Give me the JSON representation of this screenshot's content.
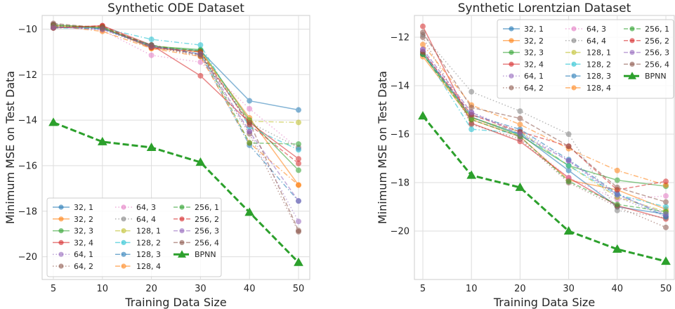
{
  "chart_data": [
    {
      "type": "line",
      "title": "Synthetic ODE Dataset",
      "xlabel": "Training Data Size",
      "ylabel": "Minimum MSE on Test Data",
      "categories": [
        "5",
        "10",
        "20",
        "30",
        "40",
        "50"
      ],
      "ylim": [
        -21.0,
        -9.4
      ],
      "yticks": [
        -20,
        -18,
        -16,
        -14,
        -12,
        -10
      ],
      "grid": true,
      "legend_position": "lower-left",
      "legend_columns": 3,
      "series": [
        {
          "name": "32, 1",
          "color": "#1f77b4",
          "dash": "solid",
          "marker": "circle",
          "values": [
            -9.9,
            -9.95,
            -10.8,
            -10.95,
            -13.15,
            -13.55
          ]
        },
        {
          "name": "32, 2",
          "color": "#ff7f0e",
          "dash": "solid",
          "marker": "circle",
          "values": [
            -9.85,
            -9.9,
            -10.85,
            -11.0,
            -13.9,
            -16.85
          ]
        },
        {
          "name": "32, 3",
          "color": "#2ca02c",
          "dash": "solid",
          "marker": "circle",
          "values": [
            -9.8,
            -9.95,
            -10.75,
            -10.9,
            -14.0,
            -16.2
          ]
        },
        {
          "name": "32, 4",
          "color": "#d62728",
          "dash": "solid",
          "marker": "circle",
          "values": [
            -9.95,
            -9.85,
            -10.7,
            -12.05,
            -14.1,
            -15.7
          ]
        },
        {
          "name": "64, 1",
          "color": "#9467bd",
          "dash": "dotted",
          "marker": "circle",
          "values": [
            -9.8,
            -10.0,
            -10.8,
            -11.1,
            -14.5,
            -18.45
          ]
        },
        {
          "name": "64, 2",
          "color": "#8c564b",
          "dash": "dotted",
          "marker": "circle",
          "values": [
            -9.8,
            -10.0,
            -10.75,
            -11.2,
            -14.6,
            -18.9
          ]
        },
        {
          "name": "64, 3",
          "color": "#e377c2",
          "dash": "dotted",
          "marker": "circle",
          "values": [
            -9.9,
            -10.05,
            -11.15,
            -11.45,
            -13.5,
            -15.25
          ]
        },
        {
          "name": "64, 4",
          "color": "#7f7f7f",
          "dash": "dotted",
          "marker": "circle",
          "values": [
            -9.85,
            -10.0,
            -10.8,
            -11.1,
            -14.1,
            -15.2
          ]
        },
        {
          "name": "128, 1",
          "color": "#bcbd22",
          "dash": "dashdot",
          "marker": "circle",
          "values": [
            -9.9,
            -9.95,
            -10.7,
            -11.0,
            -14.05,
            -14.1
          ]
        },
        {
          "name": "128, 2",
          "color": "#17becf",
          "dash": "dashdot",
          "marker": "circle",
          "values": [
            -9.95,
            -9.95,
            -10.45,
            -10.7,
            -14.3,
            -15.3
          ]
        },
        {
          "name": "128, 3",
          "color": "#1f77b4",
          "dash": "dashdot",
          "marker": "circle",
          "values": [
            -9.9,
            -10.0,
            -10.7,
            -11.1,
            -15.1,
            -17.55
          ]
        },
        {
          "name": "128, 4",
          "color": "#ff7f0e",
          "dash": "dashdot",
          "marker": "circle",
          "values": [
            -9.85,
            -10.1,
            -10.85,
            -11.2,
            -15.0,
            -16.85
          ]
        },
        {
          "name": "256, 1",
          "color": "#2ca02c",
          "dash": "dashed",
          "marker": "circle",
          "values": [
            -9.85,
            -9.9,
            -10.75,
            -10.95,
            -15.0,
            -15.05
          ]
        },
        {
          "name": "256, 2",
          "color": "#d62728",
          "dash": "dashed",
          "marker": "circle",
          "values": [
            -9.95,
            -9.85,
            -10.8,
            -11.0,
            -14.2,
            -15.9
          ]
        },
        {
          "name": "256, 3",
          "color": "#9467bd",
          "dash": "dashed",
          "marker": "circle",
          "values": [
            -9.9,
            -10.0,
            -10.75,
            -11.1,
            -14.5,
            -17.55
          ]
        },
        {
          "name": "256, 4",
          "color": "#8c564b",
          "dash": "dashed",
          "marker": "circle",
          "values": [
            -9.75,
            -9.95,
            -10.7,
            -11.15,
            -14.1,
            -18.85
          ]
        },
        {
          "name": "BPNN",
          "color": "#2ca02c",
          "dash": "bold-dashed",
          "marker": "triangle",
          "values": [
            -14.1,
            -14.95,
            -15.2,
            -15.85,
            -18.05,
            -20.25
          ]
        }
      ]
    },
    {
      "type": "line",
      "title": "Synthetic Lorentzian Dataset",
      "xlabel": "Training Data Size",
      "ylabel": "Minimum MSE on Test Data",
      "categories": [
        "5",
        "10",
        "20",
        "30",
        "40",
        "50"
      ],
      "ylim": [
        -22.0,
        -11.1
      ],
      "yticks": [
        -20,
        -18,
        -16,
        -14,
        -12
      ],
      "grid": true,
      "legend_position": "upper-right",
      "legend_columns": 3,
      "series": [
        {
          "name": "32, 1",
          "color": "#1f77b4",
          "dash": "solid",
          "marker": "circle",
          "values": [
            -12.6,
            -15.3,
            -16.0,
            -17.5,
            -19.0,
            -19.3
          ]
        },
        {
          "name": "32, 2",
          "color": "#ff7f0e",
          "dash": "solid",
          "marker": "circle",
          "values": [
            -12.8,
            -15.4,
            -16.1,
            -17.9,
            -18.3,
            -19.1
          ]
        },
        {
          "name": "32, 3",
          "color": "#2ca02c",
          "dash": "solid",
          "marker": "circle",
          "values": [
            -12.7,
            -15.3,
            -16.05,
            -17.3,
            -17.9,
            -18.15
          ]
        },
        {
          "name": "32, 4",
          "color": "#d62728",
          "dash": "solid",
          "marker": "circle",
          "values": [
            -11.55,
            -15.55,
            -16.3,
            -17.8,
            -18.95,
            -19.5
          ]
        },
        {
          "name": "64, 1",
          "color": "#9467bd",
          "dash": "dotted",
          "marker": "circle",
          "values": [
            -12.5,
            -15.1,
            -15.9,
            -17.1,
            -18.6,
            -19.4
          ]
        },
        {
          "name": "64, 2",
          "color": "#8c564b",
          "dash": "dotted",
          "marker": "circle",
          "values": [
            -12.0,
            -15.6,
            -16.2,
            -18.0,
            -19.0,
            -19.85
          ]
        },
        {
          "name": "64, 3",
          "color": "#e377c2",
          "dash": "dotted",
          "marker": "circle",
          "values": [
            -12.6,
            -15.3,
            -16.15,
            -17.8,
            -18.7,
            -18.55
          ]
        },
        {
          "name": "64, 4",
          "color": "#7f7f7f",
          "dash": "dotted",
          "marker": "circle",
          "values": [
            -11.9,
            -14.25,
            -15.05,
            -16.0,
            -19.15,
            -19.45
          ]
        },
        {
          "name": "128, 1",
          "color": "#bcbd22",
          "dash": "dashdot",
          "marker": "circle",
          "values": [
            -12.7,
            -15.35,
            -15.9,
            -17.3,
            -18.6,
            -19.2
          ]
        },
        {
          "name": "128, 2",
          "color": "#17becf",
          "dash": "dashdot",
          "marker": "circle",
          "values": [
            -12.6,
            -15.8,
            -15.95,
            -17.3,
            -18.5,
            -19.0
          ]
        },
        {
          "name": "128, 3",
          "color": "#1f77b4",
          "dash": "dashdot",
          "marker": "circle",
          "values": [
            -12.7,
            -15.2,
            -15.8,
            -17.05,
            -18.45,
            -19.4
          ]
        },
        {
          "name": "128, 4",
          "color": "#ff7f0e",
          "dash": "dashdot",
          "marker": "circle",
          "values": [
            -12.3,
            -14.8,
            -15.6,
            -16.6,
            -17.5,
            -18.1
          ]
        },
        {
          "name": "256, 1",
          "color": "#2ca02c",
          "dash": "dashed",
          "marker": "circle",
          "values": [
            -12.7,
            -15.4,
            -16.1,
            -17.95,
            -18.9,
            -19.2
          ]
        },
        {
          "name": "256, 2",
          "color": "#d62728",
          "dash": "dashed",
          "marker": "circle",
          "values": [
            -12.6,
            -15.2,
            -15.9,
            -16.5,
            -18.3,
            -17.95
          ]
        },
        {
          "name": "256, 3",
          "color": "#9467bd",
          "dash": "dashed",
          "marker": "circle",
          "values": [
            -12.5,
            -15.1,
            -16.0,
            -17.1,
            -18.5,
            -19.3
          ]
        },
        {
          "name": "256, 4",
          "color": "#8c564b",
          "dash": "dashed",
          "marker": "circle",
          "values": [
            -11.8,
            -14.9,
            -15.35,
            -16.5,
            -18.2,
            -18.8
          ]
        },
        {
          "name": "BPNN",
          "color": "#2ca02c",
          "dash": "bold-dashed",
          "marker": "triangle",
          "values": [
            -15.25,
            -17.7,
            -18.2,
            -20.0,
            -20.75,
            -21.25
          ]
        }
      ]
    }
  ]
}
